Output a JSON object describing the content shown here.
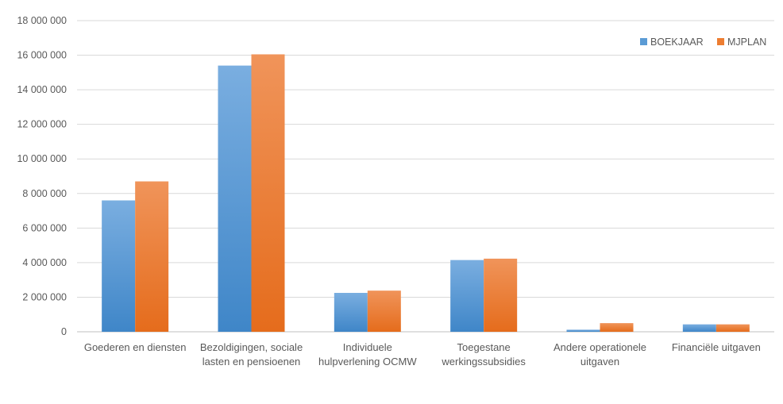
{
  "chart_data": {
    "type": "bar",
    "categories": [
      [
        "Goederen en diensten"
      ],
      [
        "Bezoldigingen, sociale",
        "lasten en pensioenen"
      ],
      [
        "Individuele",
        "hulpverlening OCMW"
      ],
      [
        "Toegestane",
        "werkingssubsidies"
      ],
      [
        "Andere operationele",
        "uitgaven"
      ],
      [
        "Financiële uitgaven"
      ]
    ],
    "series": [
      {
        "name": "BOEKJAAR",
        "color": "#5b9bd5",
        "values": [
          7600000,
          15400000,
          2250000,
          4150000,
          120000,
          430000
        ]
      },
      {
        "name": "MJPLAN",
        "color": "#ed7d31",
        "values": [
          8700000,
          16050000,
          2380000,
          4230000,
          500000,
          430000
        ]
      }
    ],
    "ylim": [
      0,
      18000000
    ],
    "y_ticks": [
      0,
      2000000,
      4000000,
      6000000,
      8000000,
      10000000,
      12000000,
      14000000,
      16000000,
      18000000
    ],
    "y_tick_labels": [
      "0",
      "2 000 000",
      "4 000 000",
      "6 000 000",
      "8 000 000",
      "10 000 000",
      "12 000 000",
      "14 000 000",
      "16 000 000",
      "18 000 000"
    ],
    "grid": true,
    "legend_position": "top-right",
    "title": "",
    "xlabel": "",
    "ylabel": ""
  }
}
